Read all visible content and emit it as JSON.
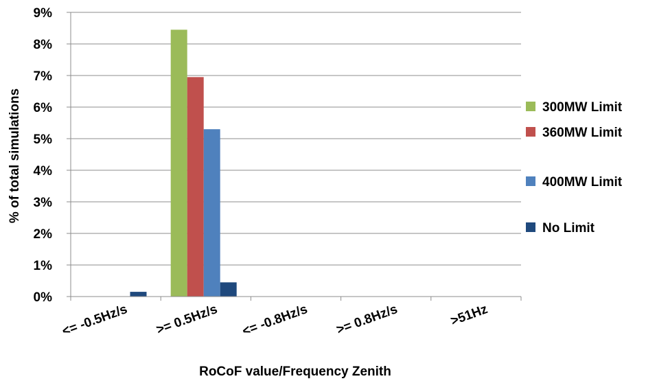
{
  "chart_data": {
    "type": "bar",
    "title": "",
    "xlabel": "RoCoF value/Frequency Zenith",
    "ylabel": "% of total simulations",
    "categories": [
      "<= -0.5Hz/s",
      ">= 0.5Hz/s",
      "<= -0.8Hz/s",
      ">= 0.8Hz/s",
      ">51Hz"
    ],
    "ylim": [
      0,
      9
    ],
    "y_ticks": [
      "0%",
      "1%",
      "2%",
      "3%",
      "4%",
      "5%",
      "6%",
      "7%",
      "8%",
      "9%"
    ],
    "grid": true,
    "legend_position": "right",
    "series": [
      {
        "name": "300MW Limit",
        "color": "#9bbb59",
        "values": [
          0,
          8.45,
          0,
          0,
          0
        ]
      },
      {
        "name": "360MW Limit",
        "color": "#c0504d",
        "values": [
          0,
          6.95,
          0,
          0,
          0
        ]
      },
      {
        "name": "400MW Limit",
        "color": "#4f81bd",
        "values": [
          0,
          5.3,
          0,
          0,
          0
        ]
      },
      {
        "name": "No Limit",
        "color": "#1f497d",
        "values": [
          0.15,
          0.45,
          0,
          0,
          0
        ]
      }
    ]
  }
}
